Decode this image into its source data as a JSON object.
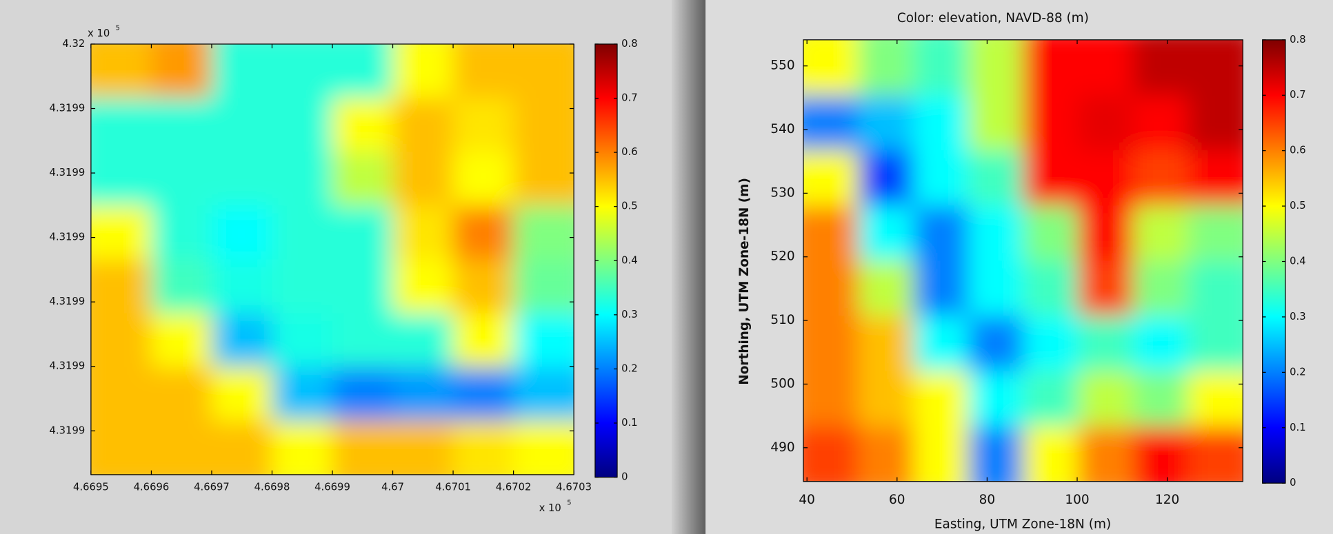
{
  "chart_data": [
    {
      "type": "heatmap",
      "colormap": "jet",
      "xlim": [
        4.6695,
        4.6703
      ],
      "xticks": [
        4.6695,
        4.6696,
        4.6697,
        4.6698,
        4.6699,
        4.67,
        4.6701,
        4.6702,
        4.6703
      ],
      "ylim": [
        4.3199332,
        4.32
      ],
      "yticks": [
        4.32,
        {
          "value": 4.31999,
          "label": "4.3199"
        },
        {
          "value": 4.31998,
          "label": "4.3199"
        },
        {
          "value": 4.31997,
          "label": "4.3199"
        },
        {
          "value": 4.31996,
          "label": "4.3199"
        },
        {
          "value": 4.31995,
          "label": "4.3199"
        },
        {
          "value": 4.31994,
          "label": "4.3199"
        }
      ],
      "x_offset": {
        "base": "x 10",
        "exponent": "5"
      },
      "y_offset": {
        "base": "x 10",
        "exponent": "5"
      },
      "clim": [
        0,
        0.8
      ],
      "cticks": [
        0,
        0.1,
        0.2,
        0.3,
        0.4,
        0.5,
        0.6,
        0.7,
        0.8
      ],
      "z": [
        [
          0.55,
          0.58,
          0.33,
          0.33,
          0.33,
          0.5,
          0.55,
          0.55
        ],
        [
          0.33,
          0.33,
          0.33,
          0.33,
          0.5,
          0.55,
          0.52,
          0.55
        ],
        [
          0.33,
          0.33,
          0.33,
          0.33,
          0.45,
          0.55,
          0.5,
          0.55
        ],
        [
          0.5,
          0.33,
          0.3,
          0.33,
          0.33,
          0.52,
          0.6,
          0.4
        ],
        [
          0.55,
          0.35,
          0.32,
          0.33,
          0.33,
          0.5,
          0.55,
          0.38
        ],
        [
          0.55,
          0.5,
          0.25,
          0.32,
          0.33,
          0.33,
          0.5,
          0.3
        ],
        [
          0.55,
          0.55,
          0.5,
          0.25,
          0.2,
          0.22,
          0.2,
          0.25
        ],
        [
          0.55,
          0.55,
          0.55,
          0.5,
          0.55,
          0.55,
          0.52,
          0.5
        ]
      ]
    },
    {
      "type": "heatmap",
      "colormap": "jet",
      "title": "Color: elevation, NAVD-88 (m)",
      "xlabel": "Easting, UTM Zone-18N (m)",
      "ylabel": "Northing, UTM Zone-18N (m)",
      "xlim": [
        39.2,
        136.8
      ],
      "xticks": [
        40,
        60,
        80,
        100,
        120
      ],
      "ylim": [
        484.7,
        554.1
      ],
      "yticks": [
        490,
        500,
        510,
        520,
        530,
        540,
        550
      ],
      "clim": [
        0,
        0.8
      ],
      "cticks": [
        0,
        0.1,
        0.2,
        0.3,
        0.4,
        0.5,
        0.6,
        0.7,
        0.8
      ],
      "z": [
        [
          0.5,
          0.4,
          0.35,
          0.45,
          0.7,
          0.7,
          0.75,
          0.75
        ],
        [
          0.2,
          0.25,
          0.3,
          0.45,
          0.7,
          0.72,
          0.7,
          0.75
        ],
        [
          0.5,
          0.15,
          0.3,
          0.35,
          0.7,
          0.7,
          0.65,
          0.7
        ],
        [
          0.6,
          0.3,
          0.2,
          0.3,
          0.4,
          0.7,
          0.45,
          0.4
        ],
        [
          0.6,
          0.45,
          0.2,
          0.3,
          0.35,
          0.65,
          0.4,
          0.35
        ],
        [
          0.6,
          0.55,
          0.3,
          0.2,
          0.3,
          0.35,
          0.3,
          0.35
        ],
        [
          0.6,
          0.55,
          0.5,
          0.3,
          0.35,
          0.45,
          0.4,
          0.5
        ],
        [
          0.65,
          0.6,
          0.5,
          0.2,
          0.5,
          0.6,
          0.7,
          0.65
        ]
      ]
    }
  ]
}
